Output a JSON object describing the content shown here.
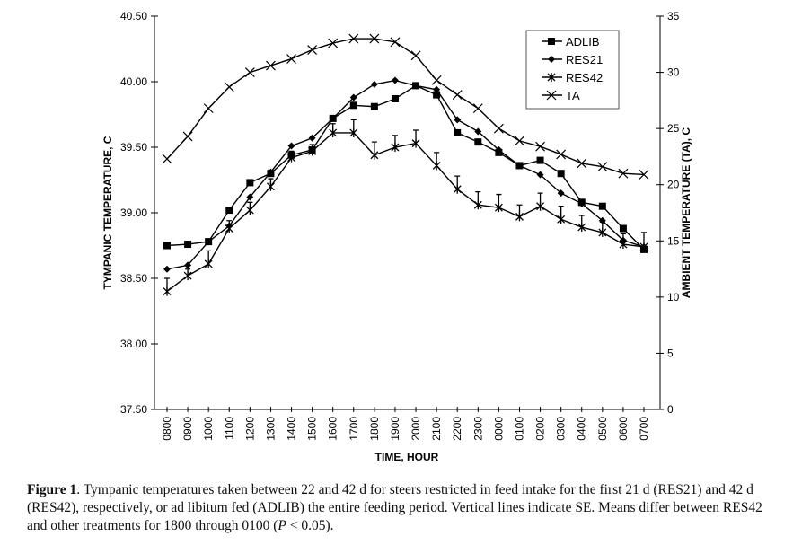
{
  "chart_data": {
    "type": "line",
    "title": "",
    "xlabel": "TIME, HOUR",
    "ylabel": "TYMPANIC TEMPERATURE, C",
    "y2label": "AMBIENT TEMPERATURE (TA), C",
    "ylim": [
      37.5,
      40.5
    ],
    "y2lim": [
      0,
      35
    ],
    "yticks": [
      "37.50",
      "38.00",
      "38.50",
      "39.00",
      "39.50",
      "40.00",
      "40.50"
    ],
    "y2ticks": [
      "0",
      "5",
      "10",
      "15",
      "20",
      "25",
      "30",
      "35"
    ],
    "legend_position": "top-right",
    "grid": false,
    "categories": [
      "0800",
      "0900",
      "1000",
      "1100",
      "1200",
      "1300",
      "1400",
      "1500",
      "1600",
      "1700",
      "1800",
      "1900",
      "2000",
      "2100",
      "2200",
      "2300",
      "0000",
      "0100",
      "0200",
      "0300",
      "0400",
      "0500",
      "0600",
      "0700"
    ],
    "series": [
      {
        "name": "ADLIB",
        "axis": "left",
        "marker": "square",
        "values": [
          38.75,
          38.76,
          38.78,
          39.02,
          39.23,
          39.3,
          39.44,
          39.48,
          39.72,
          39.82,
          39.81,
          39.87,
          39.97,
          39.9,
          39.61,
          39.54,
          39.46,
          39.36,
          39.4,
          39.3,
          39.08,
          39.05,
          38.88,
          38.72
        ]
      },
      {
        "name": "RES21",
        "axis": "left",
        "marker": "diamond",
        "values": [
          38.57,
          38.6,
          38.78,
          38.9,
          39.12,
          39.31,
          39.51,
          39.57,
          39.72,
          39.88,
          39.98,
          40.01,
          39.97,
          39.94,
          39.71,
          39.62,
          39.48,
          39.36,
          39.29,
          39.15,
          39.07,
          38.94,
          38.79,
          38.74
        ]
      },
      {
        "name": "RES42",
        "axis": "left",
        "marker": "asterisk",
        "values": [
          38.4,
          38.52,
          38.61,
          38.88,
          39.02,
          39.2,
          39.42,
          39.47,
          39.61,
          39.61,
          39.44,
          39.5,
          39.53,
          39.36,
          39.18,
          39.06,
          39.04,
          38.97,
          39.05,
          38.95,
          38.89,
          38.85,
          38.76,
          38.74
        ],
        "se": [
          0.1,
          0.05,
          0.1,
          0.06,
          0.06,
          0.06,
          0.05,
          0.05,
          0.07,
          0.1,
          0.1,
          0.09,
          0.1,
          0.1,
          0.1,
          0.1,
          0.1,
          0.09,
          0.1,
          0.1,
          0.09,
          0.08,
          0.08,
          0.11
        ]
      },
      {
        "name": "TA",
        "axis": "right",
        "marker": "x",
        "values": [
          22.3,
          24.3,
          26.8,
          28.7,
          30.0,
          30.6,
          31.2,
          32.0,
          32.6,
          33.0,
          33.0,
          32.7,
          31.5,
          29.3,
          28.0,
          26.8,
          25.0,
          23.9,
          23.4,
          22.7,
          21.9,
          21.6,
          21.0,
          20.9
        ]
      }
    ]
  },
  "caption": {
    "label": "Figure 1",
    "text": ". Tympanic temperatures taken between 22 and 42 d for steers restricted in feed intake for the first 21 d (RES21) and 42 d (RES42), respectively, or ad libitum fed (ADLIB) the entire feeding period. Vertical lines indicate SE. Means differ between RES42 and other treatments for 1800 through 0100 (",
    "p_symbol": "P",
    "text_end": " < 0.05)."
  }
}
